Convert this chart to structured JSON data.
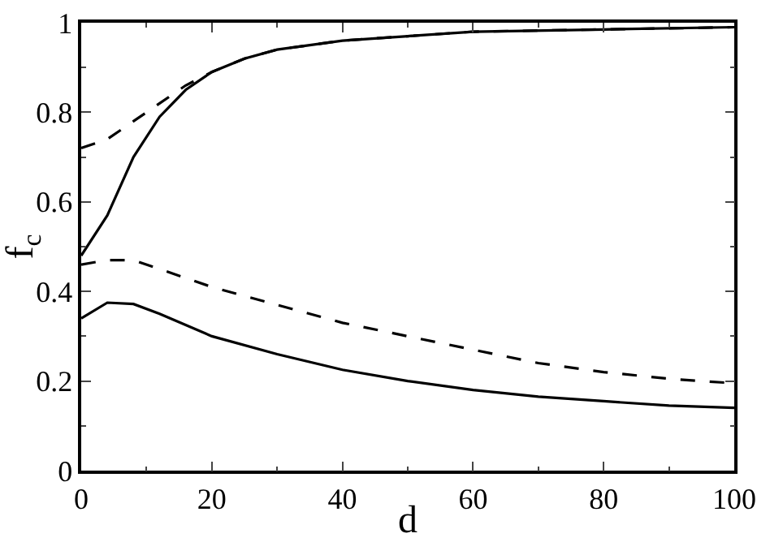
{
  "chart_data": {
    "type": "line",
    "xlabel": "d",
    "ylabel": "f$_{c}$",
    "xlim": [
      0,
      100
    ],
    "ylim": [
      0,
      1
    ],
    "xticks": [
      0,
      20,
      40,
      60,
      80,
      100
    ],
    "yticks": [
      0,
      0.2,
      0.4,
      0.6,
      0.8,
      1
    ],
    "marker": "none",
    "series": [
      {
        "color": "#000000",
        "line_style": "solid",
        "x": [
          0,
          4,
          8,
          12,
          16,
          20,
          25,
          30,
          40,
          50,
          60,
          80,
          100
        ],
        "values": [
          0.48,
          0.57,
          0.7,
          0.79,
          0.85,
          0.89,
          0.92,
          0.94,
          0.96,
          0.97,
          0.98,
          0.985,
          0.99
        ]
      },
      {
        "color": "#000000",
        "line_style": "dashed",
        "x": [
          0,
          4,
          8,
          12,
          16,
          20,
          25,
          30,
          40,
          50,
          60,
          80,
          100
        ],
        "values": [
          0.72,
          0.74,
          0.78,
          0.82,
          0.86,
          0.89,
          0.92,
          0.94,
          0.96,
          0.97,
          0.98,
          0.985,
          0.99
        ]
      },
      {
        "color": "#000000",
        "line_style": "dashed",
        "x": [
          0,
          4,
          8,
          12,
          20,
          30,
          40,
          50,
          60,
          70,
          80,
          90,
          100
        ],
        "values": [
          0.46,
          0.47,
          0.47,
          0.45,
          0.41,
          0.37,
          0.33,
          0.3,
          0.27,
          0.24,
          0.22,
          0.205,
          0.195
        ]
      },
      {
        "color": "#000000",
        "line_style": "solid",
        "x": [
          0,
          4,
          8,
          12,
          20,
          30,
          40,
          50,
          60,
          70,
          80,
          90,
          100
        ],
        "values": [
          0.34,
          0.375,
          0.372,
          0.35,
          0.3,
          0.26,
          0.225,
          0.2,
          0.18,
          0.165,
          0.155,
          0.145,
          0.14
        ]
      }
    ]
  }
}
